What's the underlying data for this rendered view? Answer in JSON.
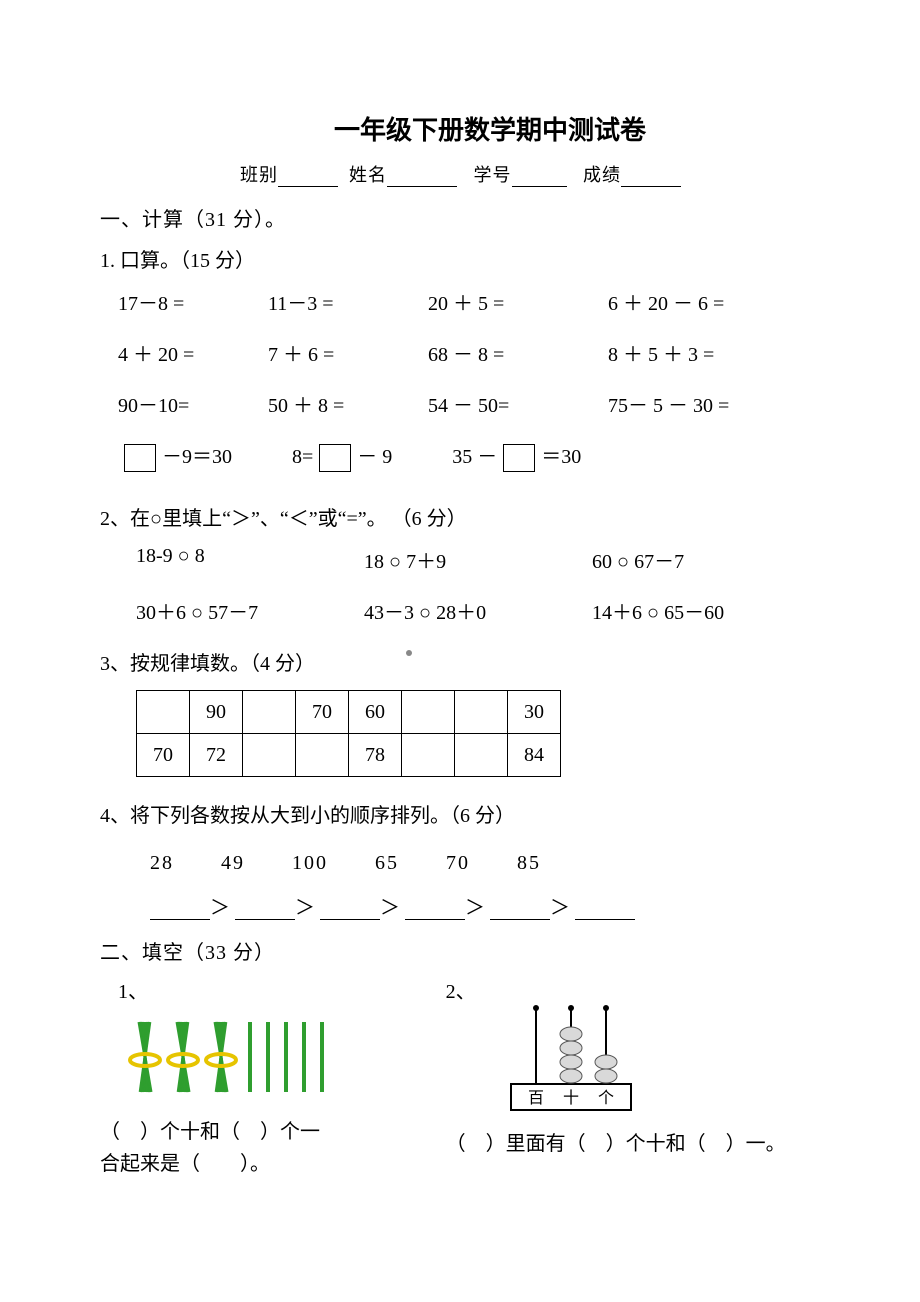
{
  "title": "一年级下册数学期中测试卷",
  "info": {
    "class_label": "班别",
    "name_label": "姓名",
    "id_label": "学号",
    "score_label": "成绩"
  },
  "sec1": {
    "heading": "一、计算（31 分）。",
    "q1_heading": "1. 口算。（15 分）",
    "calc": {
      "r1": [
        "17－8 =",
        "11－3 =",
        "20 ＋ 5 =",
        "6  ＋ 20 － 6  ="
      ],
      "r2": [
        "4 ＋ 20 =",
        "7 ＋ 6 =",
        "68 － 8 =",
        "8  ＋ 5 ＋ 3 ="
      ],
      "r3": [
        "90－10=",
        "50 ＋ 8 =",
        "54  － 50=",
        "75－ 5 － 30 ="
      ]
    },
    "box_row": {
      "a_left": "",
      "a_mid": "－9＝30",
      "b_left": "8=",
      "b_right": "－ 9",
      "c_left": "35 －",
      "c_right": "＝30"
    },
    "q2_heading": "2、在○里填上“＞”、“＜”或“=”。 （6 分）",
    "comp": {
      "r1": [
        "18-9 ○ 8",
        "18 ○ 7＋9",
        "60 ○ 67－7"
      ],
      "r2": [
        "30＋6 ○ 57－7",
        "43－3 ○ 28＋0",
        "14＋6 ○ 65－60"
      ]
    },
    "q3_heading": "3、按规律填数。（4 分）",
    "seq": {
      "row1": [
        "",
        "90",
        "",
        "70",
        "60",
        "",
        "",
        "30"
      ],
      "row2": [
        "70",
        "72",
        "",
        "",
        "78",
        "",
        "",
        "84"
      ]
    },
    "q4_heading": "4、将下列各数按从大到小的顺序排列。（6 分）",
    "sort_nums": [
      "28",
      "49",
      "100",
      "65",
      "70",
      "85"
    ],
    "gt": "＞"
  },
  "sec2": {
    "heading": "二、填空（33 分）",
    "item1_num": "1、",
    "item2_num": "2、",
    "sticks": {
      "bundle_color": "#2f9e2f",
      "band_color": "#e6c400",
      "stick_color": "#2f9e2f",
      "bundles": 3,
      "loose": 5
    },
    "abacus": {
      "frame_color": "#000000",
      "bead_fill": "#d9d9d9",
      "bead_stroke": "#555555",
      "labels": [
        "百",
        "十",
        "个"
      ],
      "rods": [
        0,
        4,
        2
      ]
    },
    "ans1_line1": "（　）个十和（　）个一",
    "ans1_line2": "合起来是（　　）。",
    "ans2_line1": "（　）里面有（　）个十和（　）一。"
  },
  "colors": {
    "text": "#000000",
    "bg": "#ffffff"
  }
}
